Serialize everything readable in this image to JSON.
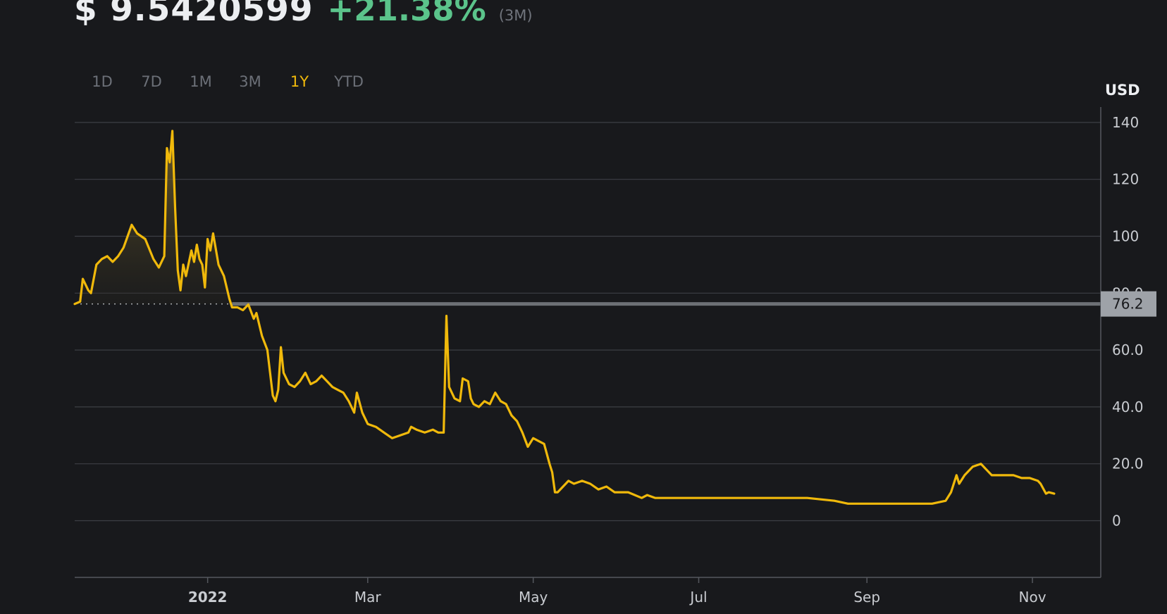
{
  "header": {
    "price": "$ 9.5420599",
    "change": "+21.38%",
    "period": "(3M)"
  },
  "ranges": [
    "1D",
    "7D",
    "1M",
    "3M",
    "1Y",
    "YTD"
  ],
  "active_range": "1Y",
  "currency": "USD",
  "colors": {
    "line": "#f0b90b",
    "up": "#5bc48b",
    "grid": "#3c3f45",
    "tag_bg": "#9ea2a8"
  },
  "chart_data": {
    "type": "line",
    "title": "",
    "xlabel": "",
    "ylabel": "USD",
    "ylim": [
      -20,
      145
    ],
    "yticks": [
      0,
      20,
      40,
      60,
      80,
      100,
      120,
      140
    ],
    "ytick_labels": [
      "0",
      "20.0",
      "40.0",
      "60.0",
      "80.0",
      "100",
      "120",
      "140"
    ],
    "xticks": [
      {
        "date": "2022-01-01",
        "label": "2022"
      },
      {
        "date": "2022-03-01",
        "label": "Mar"
      },
      {
        "date": "2022-05-01",
        "label": "May"
      },
      {
        "date": "2022-07-01",
        "label": "Jul"
      },
      {
        "date": "2022-09-01",
        "label": "Sep"
      },
      {
        "date": "2022-11-01",
        "label": "Nov"
      }
    ],
    "reference_value": 76.2,
    "reference_label": "76.2",
    "series": [
      {
        "values": [
          [
            "2021-11-13",
            76.2
          ],
          [
            "2021-11-15",
            77
          ],
          [
            "2021-11-16",
            85
          ],
          [
            "2021-11-18",
            81
          ],
          [
            "2021-11-19",
            80
          ],
          [
            "2021-11-21",
            90
          ],
          [
            "2021-11-23",
            92
          ],
          [
            "2021-11-25",
            93
          ],
          [
            "2021-11-27",
            91
          ],
          [
            "2021-11-29",
            93
          ],
          [
            "2021-12-01",
            96
          ],
          [
            "2021-12-04",
            104
          ],
          [
            "2021-12-06",
            101
          ],
          [
            "2021-12-09",
            99
          ],
          [
            "2021-12-12",
            92
          ],
          [
            "2021-12-14",
            89
          ],
          [
            "2021-12-15",
            91
          ],
          [
            "2021-12-16",
            93
          ],
          [
            "2021-12-17",
            131
          ],
          [
            "2021-12-18",
            126
          ],
          [
            "2021-12-19",
            137
          ],
          [
            "2021-12-20",
            110
          ],
          [
            "2021-12-21",
            88
          ],
          [
            "2021-12-22",
            81
          ],
          [
            "2021-12-23",
            90
          ],
          [
            "2021-12-24",
            86
          ],
          [
            "2021-12-26",
            95
          ],
          [
            "2021-12-27",
            91
          ],
          [
            "2021-12-28",
            97
          ],
          [
            "2021-12-29",
            92
          ],
          [
            "2021-12-30",
            90
          ],
          [
            "2021-12-31",
            82
          ],
          [
            "2022-01-01",
            99
          ],
          [
            "2022-01-02",
            95
          ],
          [
            "2022-01-03",
            101
          ],
          [
            "2022-01-05",
            90
          ],
          [
            "2022-01-07",
            86
          ],
          [
            "2022-01-09",
            78
          ],
          [
            "2022-01-10",
            75
          ],
          [
            "2022-01-12",
            75
          ],
          [
            "2022-01-14",
            74
          ],
          [
            "2022-01-16",
            76
          ],
          [
            "2022-01-18",
            71
          ],
          [
            "2022-01-19",
            73
          ],
          [
            "2022-01-21",
            65
          ],
          [
            "2022-01-23",
            60
          ],
          [
            "2022-01-25",
            44
          ],
          [
            "2022-01-26",
            42
          ],
          [
            "2022-01-27",
            46
          ],
          [
            "2022-01-28",
            61
          ],
          [
            "2022-01-29",
            52
          ],
          [
            "2022-01-31",
            48
          ],
          [
            "2022-02-02",
            47
          ],
          [
            "2022-02-04",
            49
          ],
          [
            "2022-02-06",
            52
          ],
          [
            "2022-02-08",
            48
          ],
          [
            "2022-02-10",
            49
          ],
          [
            "2022-02-12",
            51
          ],
          [
            "2022-02-14",
            49
          ],
          [
            "2022-02-16",
            47
          ],
          [
            "2022-02-18",
            46
          ],
          [
            "2022-02-20",
            45
          ],
          [
            "2022-02-22",
            42
          ],
          [
            "2022-02-24",
            38
          ],
          [
            "2022-02-25",
            45
          ],
          [
            "2022-02-27",
            38
          ],
          [
            "2022-03-01",
            34
          ],
          [
            "2022-03-04",
            33
          ],
          [
            "2022-03-07",
            31
          ],
          [
            "2022-03-10",
            29
          ],
          [
            "2022-03-13",
            30
          ],
          [
            "2022-03-16",
            31
          ],
          [
            "2022-03-17",
            33
          ],
          [
            "2022-03-19",
            32
          ],
          [
            "2022-03-22",
            31
          ],
          [
            "2022-03-25",
            32
          ],
          [
            "2022-03-27",
            31
          ],
          [
            "2022-03-29",
            31
          ],
          [
            "2022-03-30",
            72
          ],
          [
            "2022-03-31",
            47
          ],
          [
            "2022-04-02",
            43
          ],
          [
            "2022-04-04",
            42
          ],
          [
            "2022-04-05",
            50
          ],
          [
            "2022-04-07",
            49
          ],
          [
            "2022-04-08",
            43
          ],
          [
            "2022-04-09",
            41
          ],
          [
            "2022-04-11",
            40
          ],
          [
            "2022-04-13",
            42
          ],
          [
            "2022-04-15",
            41
          ],
          [
            "2022-04-17",
            45
          ],
          [
            "2022-04-19",
            42
          ],
          [
            "2022-04-21",
            41
          ],
          [
            "2022-04-23",
            37
          ],
          [
            "2022-04-25",
            35
          ],
          [
            "2022-04-27",
            31
          ],
          [
            "2022-04-29",
            26
          ],
          [
            "2022-05-01",
            29
          ],
          [
            "2022-05-03",
            28
          ],
          [
            "2022-05-05",
            27
          ],
          [
            "2022-05-07",
            20
          ],
          [
            "2022-05-08",
            17
          ],
          [
            "2022-05-09",
            10
          ],
          [
            "2022-05-10",
            10
          ],
          [
            "2022-05-12",
            12
          ],
          [
            "2022-05-14",
            14
          ],
          [
            "2022-05-16",
            13
          ],
          [
            "2022-05-19",
            14
          ],
          [
            "2022-05-22",
            13
          ],
          [
            "2022-05-25",
            11
          ],
          [
            "2022-05-28",
            12
          ],
          [
            "2022-05-31",
            10
          ],
          [
            "2022-06-05",
            10
          ],
          [
            "2022-06-10",
            8
          ],
          [
            "2022-06-12",
            9
          ],
          [
            "2022-06-15",
            8
          ],
          [
            "2022-06-20",
            8
          ],
          [
            "2022-06-25",
            8
          ],
          [
            "2022-07-01",
            8
          ],
          [
            "2022-07-10",
            8
          ],
          [
            "2022-07-20",
            8
          ],
          [
            "2022-08-01",
            8
          ],
          [
            "2022-08-10",
            8
          ],
          [
            "2022-08-20",
            7
          ],
          [
            "2022-08-25",
            6
          ],
          [
            "2022-09-01",
            6
          ],
          [
            "2022-09-10",
            6
          ],
          [
            "2022-09-20",
            6
          ],
          [
            "2022-09-25",
            6
          ],
          [
            "2022-09-30",
            7
          ],
          [
            "2022-10-02",
            10
          ],
          [
            "2022-10-04",
            16
          ],
          [
            "2022-10-05",
            13
          ],
          [
            "2022-10-07",
            16
          ],
          [
            "2022-10-10",
            19
          ],
          [
            "2022-10-13",
            20
          ],
          [
            "2022-10-15",
            18
          ],
          [
            "2022-10-17",
            16
          ],
          [
            "2022-10-19",
            16
          ],
          [
            "2022-10-22",
            16
          ],
          [
            "2022-10-25",
            16
          ],
          [
            "2022-10-28",
            15
          ],
          [
            "2022-10-31",
            15
          ],
          [
            "2022-11-03",
            14
          ],
          [
            "2022-11-04",
            13
          ],
          [
            "2022-11-06",
            9.5
          ],
          [
            "2022-11-07",
            10
          ],
          [
            "2022-11-09",
            9.5
          ]
        ]
      }
    ]
  }
}
